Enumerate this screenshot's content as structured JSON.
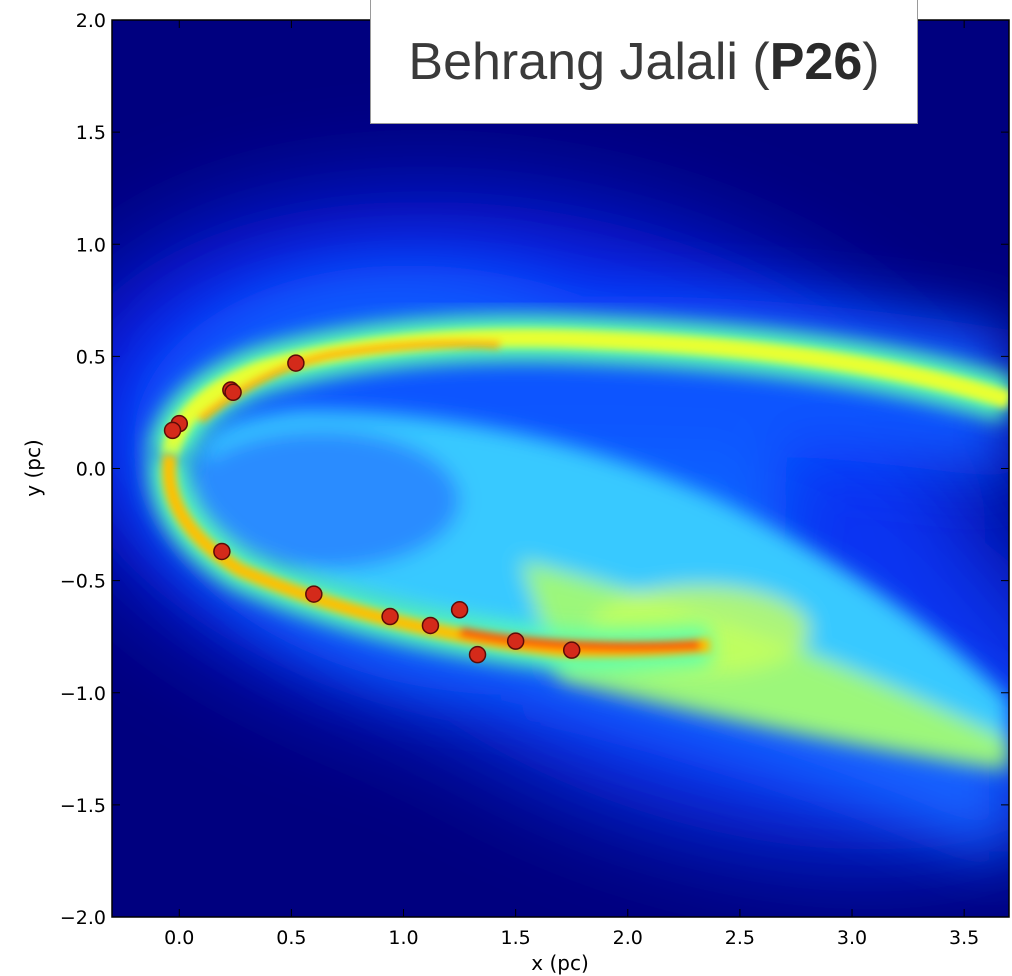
{
  "header": {
    "name": "Behrang Jalali",
    "open_paren": "(",
    "code": "P26",
    "close_paren": ")"
  },
  "chart_data": {
    "type": "scatter",
    "title": "",
    "xlabel": "x (pc)",
    "ylabel": "y (pc)",
    "xlim": [
      -0.3,
      3.7
    ],
    "ylim": [
      -2.0,
      2.0
    ],
    "xticks": [
      0.0,
      0.5,
      1.0,
      1.5,
      2.0,
      2.5,
      3.0,
      3.5
    ],
    "yticks": [
      -2.0,
      -1.5,
      -1.0,
      -0.5,
      0.0,
      0.5,
      1.0,
      1.5,
      2.0
    ],
    "xtick_labels": [
      "0.0",
      "0.5",
      "1.0",
      "1.5",
      "2.0",
      "2.5",
      "3.0",
      "3.5"
    ],
    "ytick_labels": [
      "−2.0",
      "−1.5",
      "−1.0",
      "−0.5",
      "0.0",
      "0.5",
      "1.0",
      "1.5",
      "2.0"
    ],
    "grid": false,
    "background": "gas density map (jet colormap)",
    "marker_color": "#d42a1a",
    "points": [
      {
        "x": 0.52,
        "y": 0.47
      },
      {
        "x": 0.23,
        "y": 0.35
      },
      {
        "x": 0.24,
        "y": 0.34
      },
      {
        "x": 0.0,
        "y": 0.2
      },
      {
        "x": -0.03,
        "y": 0.17
      },
      {
        "x": 0.19,
        "y": -0.37
      },
      {
        "x": 0.6,
        "y": -0.56
      },
      {
        "x": 0.94,
        "y": -0.66
      },
      {
        "x": 1.12,
        "y": -0.7
      },
      {
        "x": 1.25,
        "y": -0.63
      },
      {
        "x": 1.33,
        "y": -0.83
      },
      {
        "x": 1.5,
        "y": -0.77
      },
      {
        "x": 1.75,
        "y": -0.81
      }
    ]
  }
}
